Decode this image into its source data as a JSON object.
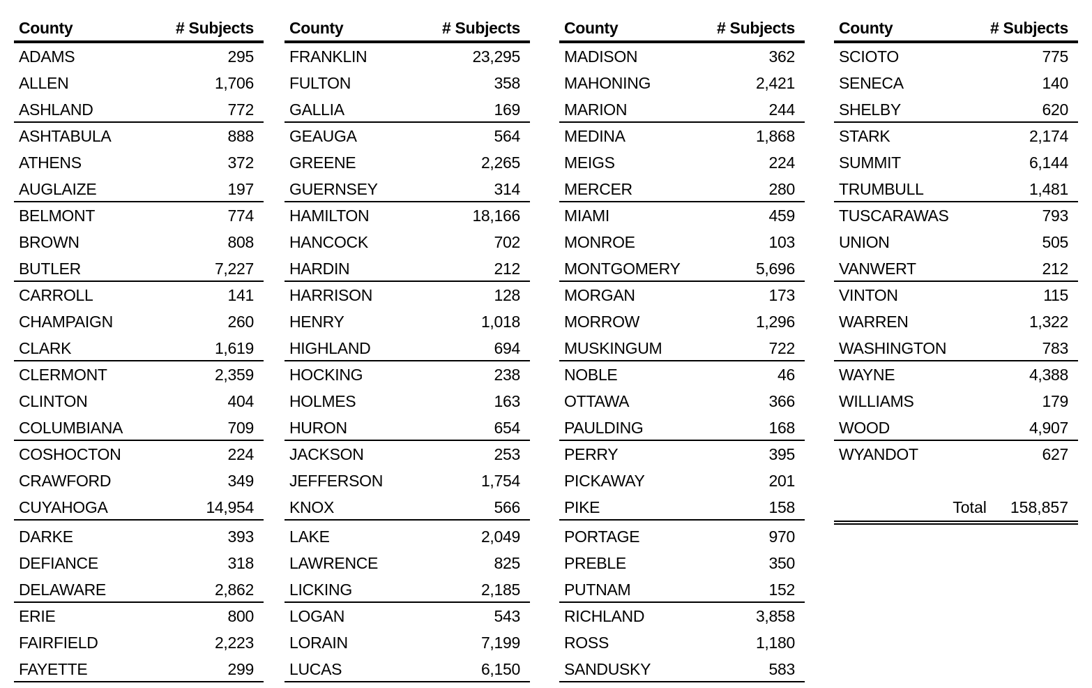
{
  "headers": {
    "county": "County",
    "subjects": "# Subjects"
  },
  "columns": [
    [
      [
        "ADAMS",
        "295"
      ],
      [
        "ALLEN",
        "1,706"
      ],
      [
        "ASHLAND",
        "772"
      ],
      [
        "ASHTABULA",
        "888"
      ],
      [
        "ATHENS",
        "372"
      ],
      [
        "AUGLAIZE",
        "197"
      ],
      [
        "BELMONT",
        "774"
      ],
      [
        "BROWN",
        "808"
      ],
      [
        "BUTLER",
        "7,227"
      ],
      [
        "CARROLL",
        "141"
      ],
      [
        "CHAMPAIGN",
        "260"
      ],
      [
        "CLARK",
        "1,619"
      ],
      [
        "CLERMONT",
        "2,359"
      ],
      [
        "CLINTON",
        "404"
      ],
      [
        "COLUMBIANA",
        "709"
      ],
      [
        "COSHOCTON",
        "224"
      ],
      [
        "CRAWFORD",
        "349"
      ],
      [
        "CUYAHOGA",
        "14,954"
      ],
      [
        "DARKE",
        "393"
      ],
      [
        "DEFIANCE",
        "318"
      ],
      [
        "DELAWARE",
        "2,862"
      ],
      [
        "ERIE",
        "800"
      ],
      [
        "FAIRFIELD",
        "2,223"
      ],
      [
        "FAYETTE",
        "299"
      ]
    ],
    [
      [
        "FRANKLIN",
        "23,295"
      ],
      [
        "FULTON",
        "358"
      ],
      [
        "GALLIA",
        "169"
      ],
      [
        "GEAUGA",
        "564"
      ],
      [
        "GREENE",
        "2,265"
      ],
      [
        "GUERNSEY",
        "314"
      ],
      [
        "HAMILTON",
        "18,166"
      ],
      [
        "HANCOCK",
        "702"
      ],
      [
        "HARDIN",
        "212"
      ],
      [
        "HARRISON",
        "128"
      ],
      [
        "HENRY",
        "1,018"
      ],
      [
        "HIGHLAND",
        "694"
      ],
      [
        "HOCKING",
        "238"
      ],
      [
        "HOLMES",
        "163"
      ],
      [
        "HURON",
        "654"
      ],
      [
        "JACKSON",
        "253"
      ],
      [
        "JEFFERSON",
        "1,754"
      ],
      [
        "KNOX",
        "566"
      ],
      [
        "LAKE",
        "2,049"
      ],
      [
        "LAWRENCE",
        "825"
      ],
      [
        "LICKING",
        "2,185"
      ],
      [
        "LOGAN",
        "543"
      ],
      [
        "LORAIN",
        "7,199"
      ],
      [
        "LUCAS",
        "6,150"
      ]
    ],
    [
      [
        "MADISON",
        "362"
      ],
      [
        "MAHONING",
        "2,421"
      ],
      [
        "MARION",
        "244"
      ],
      [
        "MEDINA",
        "1,868"
      ],
      [
        "MEIGS",
        "224"
      ],
      [
        "MERCER",
        "280"
      ],
      [
        "MIAMI",
        "459"
      ],
      [
        "MONROE",
        "103"
      ],
      [
        "MONTGOMERY",
        "5,696"
      ],
      [
        "MORGAN",
        "173"
      ],
      [
        "MORROW",
        "1,296"
      ],
      [
        "MUSKINGUM",
        "722"
      ],
      [
        "NOBLE",
        "46"
      ],
      [
        "OTTAWA",
        "366"
      ],
      [
        "PAULDING",
        "168"
      ],
      [
        "PERRY",
        "395"
      ],
      [
        "PICKAWAY",
        "201"
      ],
      [
        "PIKE",
        "158"
      ],
      [
        "PORTAGE",
        "970"
      ],
      [
        "PREBLE",
        "350"
      ],
      [
        "PUTNAM",
        "152"
      ],
      [
        "RICHLAND",
        "3,858"
      ],
      [
        "ROSS",
        "1,180"
      ],
      [
        "SANDUSKY",
        "583"
      ]
    ],
    [
      [
        "SCIOTO",
        "775"
      ],
      [
        "SENECA",
        "140"
      ],
      [
        "SHELBY",
        "620"
      ],
      [
        "STARK",
        "2,174"
      ],
      [
        "SUMMIT",
        "6,144"
      ],
      [
        "TRUMBULL",
        "1,481"
      ],
      [
        "TUSCARAWAS",
        "793"
      ],
      [
        "UNION",
        "505"
      ],
      [
        "VANWERT",
        "212"
      ],
      [
        "VINTON",
        "115"
      ],
      [
        "WARREN",
        "1,322"
      ],
      [
        "WASHINGTON",
        "783"
      ],
      [
        "WAYNE",
        "4,388"
      ],
      [
        "WILLIAMS",
        "179"
      ],
      [
        "WOOD",
        "4,907"
      ],
      [
        "WYANDOT",
        "627"
      ]
    ]
  ],
  "total": {
    "label": "Total",
    "value": "158,857"
  }
}
